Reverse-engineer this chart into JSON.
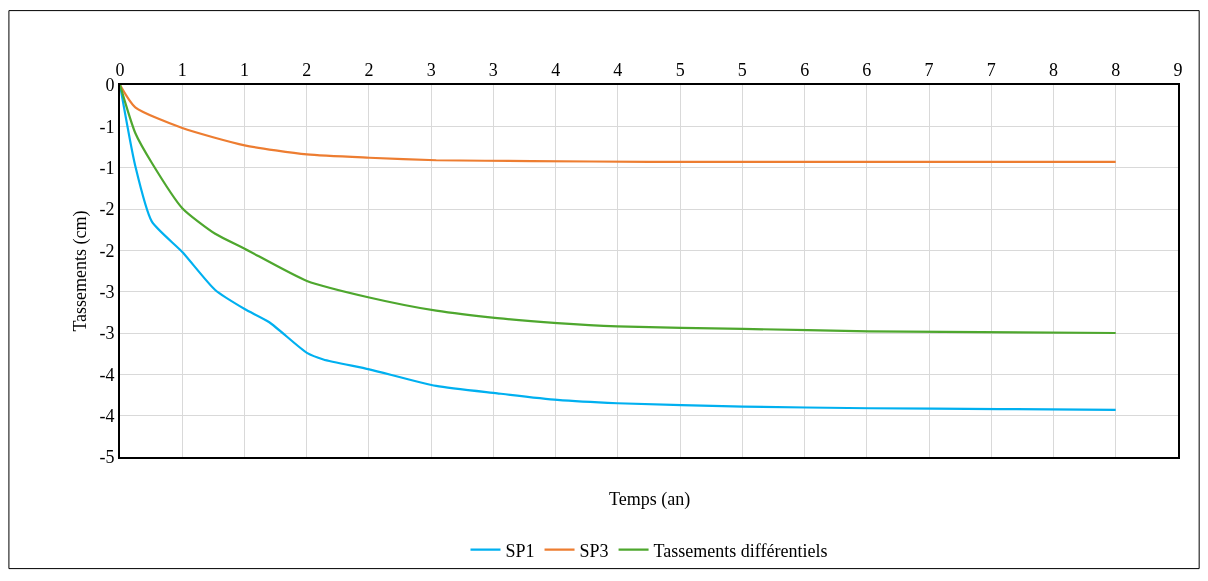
{
  "chart_data": {
    "type": "line",
    "xlabel": "Temps (an)",
    "ylabel": "Tassements (cm)",
    "xlim": [
      0,
      9
    ],
    "ylim": [
      -4.5,
      0
    ],
    "xticks": [
      0,
      {
        "value": 0.529,
        "label": "1"
      },
      {
        "value": 1.059,
        "label": "1"
      },
      {
        "value": 1.588,
        "label": "2"
      },
      {
        "value": 2.118,
        "label": "2"
      },
      {
        "value": 2.647,
        "label": "3"
      },
      {
        "value": 3.176,
        "label": "3"
      },
      {
        "value": 3.706,
        "label": "4"
      },
      {
        "value": 4.235,
        "label": "4"
      },
      {
        "value": 4.765,
        "label": "5"
      },
      {
        "value": 5.294,
        "label": "5"
      },
      {
        "value": 5.824,
        "label": "6"
      },
      {
        "value": 6.353,
        "label": "6"
      },
      {
        "value": 6.882,
        "label": "7"
      },
      {
        "value": 7.412,
        "label": "7"
      },
      {
        "value": 7.941,
        "label": "8"
      },
      {
        "value": 8.471,
        "label": "8"
      },
      9
    ],
    "yticks": [
      0,
      {
        "value": -0.5,
        "label": "-1"
      },
      -1,
      {
        "value": -1.5,
        "label": "-2"
      },
      -2,
      {
        "value": -2.5,
        "label": "-3"
      },
      -3,
      {
        "value": -3.5,
        "label": "-4"
      },
      -4,
      {
        "value": -4.5,
        "label": "-5"
      }
    ],
    "grid": true,
    "legend": "bottom",
    "marker": "none",
    "line_style": "solid",
    "series": [
      {
        "name": "SP1",
        "color": "#00b0f0",
        "x": [
          0,
          0.13,
          0.27,
          0.53,
          0.81,
          1.06,
          1.27,
          1.59,
          1.73,
          2.12,
          2.69,
          3.21,
          3.72,
          4.23,
          5.3,
          6.37,
          7.48,
          8.47
        ],
        "values": [
          0,
          -0.98,
          -1.65,
          -2.02,
          -2.48,
          -2.71,
          -2.87,
          -3.24,
          -3.32,
          -3.44,
          -3.64,
          -3.73,
          -3.81,
          -3.85,
          -3.89,
          -3.91,
          -3.92,
          -3.93
        ]
      },
      {
        "name": "SP3",
        "color": "#ed7d31",
        "x": [
          0,
          0.13,
          0.53,
          1.06,
          1.59,
          2.12,
          2.69,
          3.5,
          4.5,
          6.0,
          8.47
        ],
        "values": [
          0,
          -0.27,
          -0.52,
          -0.73,
          -0.84,
          -0.88,
          -0.91,
          -0.92,
          -0.93,
          -0.93,
          -0.93
        ]
      },
      {
        "name": "Tassements différentiels",
        "color": "#4ea72e",
        "x": [
          0,
          0.13,
          0.27,
          0.53,
          0.81,
          1.06,
          1.59,
          2.12,
          2.69,
          3.21,
          3.72,
          4.23,
          5.3,
          6.37,
          8.47
        ],
        "values": [
          0,
          -0.58,
          -0.94,
          -1.49,
          -1.8,
          -1.98,
          -2.37,
          -2.57,
          -2.73,
          -2.82,
          -2.88,
          -2.92,
          -2.95,
          -2.98,
          -3.0
        ]
      }
    ]
  }
}
